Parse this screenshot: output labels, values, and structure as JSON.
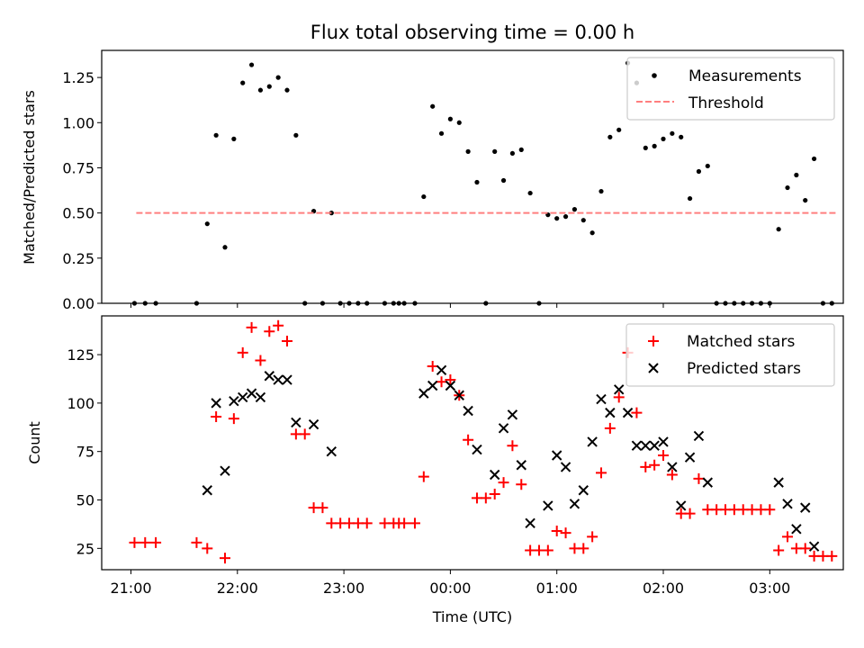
{
  "figure": {
    "title": "Flux total observing time = 0.00 h",
    "xlabel": "Time (UTC)"
  },
  "colors": {
    "measurements": "#000000",
    "threshold": "#ff7f7f",
    "matched": "#ff0000",
    "predicted": "#000000"
  },
  "chart_data": [
    {
      "type": "scatter",
      "title": "Flux total observing time = 0.00 h",
      "xlabel": "",
      "ylabel": "Matched/Predicted stars",
      "x_axis": "time",
      "xlim": [
        "20:43",
        "03:42"
      ],
      "xticks": [
        "21:00",
        "22:00",
        "23:00",
        "00:00",
        "01:00",
        "02:00",
        "03:00"
      ],
      "ylim": [
        0,
        1.4
      ],
      "yticks": [
        "0.00",
        "0.25",
        "0.50",
        "0.75",
        "1.00",
        "1.25"
      ],
      "legend": {
        "placement": "upper right",
        "entries": [
          "Measurements",
          "Threshold"
        ]
      },
      "series": [
        {
          "name": "Measurements",
          "marker": "dot",
          "points": [
            [
              "21:02",
              0
            ],
            [
              "21:08",
              0
            ],
            [
              "21:14",
              0
            ],
            [
              "21:37",
              0
            ],
            [
              "21:43",
              0.44
            ],
            [
              "21:48",
              0.93
            ],
            [
              "21:53",
              0.31
            ],
            [
              "21:58",
              0.91
            ],
            [
              "22:03",
              1.22
            ],
            [
              "22:08",
              1.32
            ],
            [
              "22:13",
              1.18
            ],
            [
              "22:18",
              1.2
            ],
            [
              "22:23",
              1.25
            ],
            [
              "22:28",
              1.18
            ],
            [
              "22:33",
              0.93
            ],
            [
              "22:38",
              0
            ],
            [
              "22:43",
              0.51
            ],
            [
              "22:48",
              0
            ],
            [
              "22:53",
              0.5
            ],
            [
              "22:58",
              0
            ],
            [
              "23:03",
              0
            ],
            [
              "23:08",
              0
            ],
            [
              "23:13",
              0
            ],
            [
              "23:23",
              0
            ],
            [
              "23:28",
              0
            ],
            [
              "23:31",
              0
            ],
            [
              "23:34",
              0
            ],
            [
              "23:40",
              0
            ],
            [
              "23:45",
              0.59
            ],
            [
              "23:50",
              1.09
            ],
            [
              "23:55",
              0.94
            ],
            [
              "00:00",
              1.02
            ],
            [
              "00:05",
              1.0
            ],
            [
              "00:10",
              0.84
            ],
            [
              "00:15",
              0.67
            ],
            [
              "00:20",
              0
            ],
            [
              "00:25",
              0.84
            ],
            [
              "00:30",
              0.68
            ],
            [
              "00:35",
              0.83
            ],
            [
              "00:40",
              0.85
            ],
            [
              "00:45",
              0.61
            ],
            [
              "00:50",
              0
            ],
            [
              "00:55",
              0.49
            ],
            [
              "01:00",
              0.47
            ],
            [
              "01:05",
              0.48
            ],
            [
              "01:10",
              0.52
            ],
            [
              "01:15",
              0.46
            ],
            [
              "01:20",
              0.39
            ],
            [
              "01:25",
              0.62
            ],
            [
              "01:30",
              0.92
            ],
            [
              "01:35",
              0.96
            ],
            [
              "01:40",
              1.33
            ],
            [
              "01:45",
              1.22
            ],
            [
              "01:50",
              0.86
            ],
            [
              "01:55",
              0.87
            ],
            [
              "02:00",
              0.91
            ],
            [
              "02:05",
              0.94
            ],
            [
              "02:10",
              0.92
            ],
            [
              "02:15",
              0.58
            ],
            [
              "02:20",
              0.73
            ],
            [
              "02:25",
              0.76
            ],
            [
              "02:30",
              0
            ],
            [
              "02:35",
              0
            ],
            [
              "02:40",
              0
            ],
            [
              "02:45",
              0
            ],
            [
              "02:50",
              0
            ],
            [
              "02:55",
              0
            ],
            [
              "03:00",
              0
            ],
            [
              "03:05",
              0.41
            ],
            [
              "03:10",
              0.64
            ],
            [
              "03:15",
              0.71
            ],
            [
              "03:20",
              0.57
            ],
            [
              "03:25",
              0.8
            ],
            [
              "03:30",
              0
            ],
            [
              "03:35",
              0
            ]
          ]
        },
        {
          "name": "Threshold",
          "marker": "dashed-line",
          "points": [
            [
              "21:03",
              0.5
            ],
            [
              "03:38",
              0.5
            ]
          ]
        }
      ]
    },
    {
      "type": "scatter",
      "xlabel": "Time (UTC)",
      "ylabel": "Count",
      "x_axis": "time",
      "xlim": [
        "20:43",
        "03:42"
      ],
      "xticks": [
        "21:00",
        "22:00",
        "23:00",
        "00:00",
        "01:00",
        "02:00",
        "03:00"
      ],
      "ylim": [
        14,
        145
      ],
      "yticks": [
        "25",
        "50",
        "75",
        "100",
        "125"
      ],
      "legend": {
        "placement": "upper right",
        "entries": [
          "Matched stars",
          "Predicted stars"
        ]
      },
      "series": [
        {
          "name": "Matched stars",
          "marker": "plus",
          "points": [
            [
              "21:02",
              28
            ],
            [
              "21:08",
              28
            ],
            [
              "21:14",
              28
            ],
            [
              "21:37",
              28
            ],
            [
              "21:43",
              25
            ],
            [
              "21:48",
              93
            ],
            [
              "21:53",
              20
            ],
            [
              "21:58",
              92
            ],
            [
              "22:03",
              126
            ],
            [
              "22:08",
              139
            ],
            [
              "22:13",
              122
            ],
            [
              "22:18",
              137
            ],
            [
              "22:23",
              140
            ],
            [
              "22:28",
              132
            ],
            [
              "22:33",
              84
            ],
            [
              "22:38",
              84
            ],
            [
              "22:43",
              46
            ],
            [
              "22:48",
              46
            ],
            [
              "22:53",
              38
            ],
            [
              "22:58",
              38
            ],
            [
              "23:03",
              38
            ],
            [
              "23:08",
              38
            ],
            [
              "23:13",
              38
            ],
            [
              "23:23",
              38
            ],
            [
              "23:28",
              38
            ],
            [
              "23:31",
              38
            ],
            [
              "23:34",
              38
            ],
            [
              "23:40",
              38
            ],
            [
              "23:45",
              62
            ],
            [
              "23:50",
              119
            ],
            [
              "23:55",
              111
            ],
            [
              "00:00",
              112
            ],
            [
              "00:05",
              104
            ],
            [
              "00:10",
              81
            ],
            [
              "00:15",
              51
            ],
            [
              "00:20",
              51
            ],
            [
              "00:25",
              53
            ],
            [
              "00:30",
              59
            ],
            [
              "00:35",
              78
            ],
            [
              "00:40",
              58
            ],
            [
              "00:45",
              24
            ],
            [
              "00:50",
              24
            ],
            [
              "00:55",
              24
            ],
            [
              "01:00",
              34
            ],
            [
              "01:05",
              33
            ],
            [
              "01:10",
              25
            ],
            [
              "01:15",
              25
            ],
            [
              "01:20",
              31
            ],
            [
              "01:25",
              64
            ],
            [
              "01:30",
              87
            ],
            [
              "01:35",
              103
            ],
            [
              "01:40",
              126
            ],
            [
              "01:45",
              95
            ],
            [
              "01:50",
              67
            ],
            [
              "01:55",
              68
            ],
            [
              "02:00",
              73
            ],
            [
              "02:05",
              63
            ],
            [
              "02:10",
              43
            ],
            [
              "02:15",
              43
            ],
            [
              "02:20",
              61
            ],
            [
              "02:25",
              45
            ],
            [
              "02:30",
              45
            ],
            [
              "02:35",
              45
            ],
            [
              "02:40",
              45
            ],
            [
              "02:45",
              45
            ],
            [
              "02:50",
              45
            ],
            [
              "02:55",
              45
            ],
            [
              "03:00",
              45
            ],
            [
              "03:05",
              24
            ],
            [
              "03:10",
              31
            ],
            [
              "03:15",
              25
            ],
            [
              "03:20",
              25
            ],
            [
              "03:25",
              21
            ],
            [
              "03:30",
              21
            ],
            [
              "03:35",
              21
            ]
          ]
        },
        {
          "name": "Predicted stars",
          "marker": "x",
          "points": [
            [
              "21:43",
              55
            ],
            [
              "21:48",
              100
            ],
            [
              "21:53",
              65
            ],
            [
              "21:58",
              101
            ],
            [
              "22:03",
              103
            ],
            [
              "22:08",
              105
            ],
            [
              "22:13",
              103
            ],
            [
              "22:18",
              114
            ],
            [
              "22:23",
              112
            ],
            [
              "22:28",
              112
            ],
            [
              "22:33",
              90
            ],
            [
              "22:43",
              89
            ],
            [
              "22:53",
              75
            ],
            [
              "23:45",
              105
            ],
            [
              "23:50",
              109
            ],
            [
              "23:55",
              117
            ],
            [
              "00:00",
              109
            ],
            [
              "00:05",
              104
            ],
            [
              "00:10",
              96
            ],
            [
              "00:15",
              76
            ],
            [
              "00:25",
              63
            ],
            [
              "00:30",
              87
            ],
            [
              "00:35",
              94
            ],
            [
              "00:40",
              68
            ],
            [
              "00:45",
              38
            ],
            [
              "00:55",
              47
            ],
            [
              "01:00",
              73
            ],
            [
              "01:05",
              67
            ],
            [
              "01:10",
              48
            ],
            [
              "01:15",
              55
            ],
            [
              "01:20",
              80
            ],
            [
              "01:25",
              102
            ],
            [
              "01:30",
              95
            ],
            [
              "01:35",
              107
            ],
            [
              "01:40",
              95
            ],
            [
              "01:45",
              78
            ],
            [
              "01:50",
              78
            ],
            [
              "01:55",
              78
            ],
            [
              "02:00",
              80
            ],
            [
              "02:05",
              67
            ],
            [
              "02:10",
              47
            ],
            [
              "02:15",
              72
            ],
            [
              "02:20",
              83
            ],
            [
              "02:25",
              59
            ],
            [
              "03:05",
              59
            ],
            [
              "03:10",
              48
            ],
            [
              "03:15",
              35
            ],
            [
              "03:20",
              46
            ],
            [
              "03:25",
              26
            ]
          ]
        }
      ]
    }
  ]
}
